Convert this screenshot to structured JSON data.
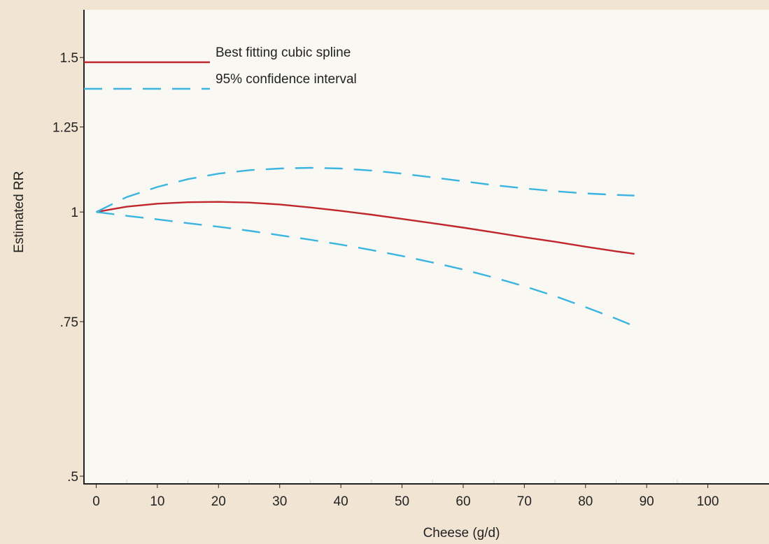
{
  "chart_data": {
    "type": "line",
    "title": "",
    "xlabel": "Cheese (g/d)",
    "ylabel": "Estimated RR",
    "xlim": [
      -2,
      110
    ],
    "ylim": [
      0.49,
      1.7
    ],
    "y_scale": "log",
    "x_ticks": [
      0,
      10,
      20,
      30,
      40,
      50,
      60,
      70,
      80,
      90,
      100
    ],
    "x_tick_labels": [
      "0",
      "10",
      "20",
      "30",
      "40",
      "50",
      "60",
      "70",
      "80",
      "90",
      "100"
    ],
    "y_ticks": [
      0.5,
      0.75,
      1,
      1.25,
      1.5
    ],
    "y_tick_labels": [
      ".5",
      ".75",
      "1",
      "1.25",
      "1.5"
    ],
    "legend_position": "top-left",
    "background_color": "#f1e4d3",
    "plot_background_color": "#faf8f3",
    "series": [
      {
        "name": "Best fitting cubic spline",
        "style": "solid",
        "color": "#c0272d",
        "x": [
          0,
          5,
          10,
          15,
          20,
          25,
          30,
          35,
          40,
          45,
          50,
          55,
          60,
          65,
          70,
          75,
          80,
          85,
          88
        ],
        "y": [
          1.0,
          1.014,
          1.022,
          1.026,
          1.027,
          1.025,
          1.02,
          1.012,
          1.003,
          0.993,
          0.982,
          0.971,
          0.96,
          0.948,
          0.936,
          0.925,
          0.913,
          0.902,
          0.896
        ]
      },
      {
        "name": "95% confidence interval",
        "style": "dashed",
        "color": "#3bb4e0",
        "x": [
          0,
          5,
          10,
          15,
          20,
          25,
          30,
          35,
          40,
          45,
          50,
          55,
          60,
          65,
          70,
          75,
          80,
          85,
          88
        ],
        "y": [
          1.0,
          1.04,
          1.068,
          1.09,
          1.106,
          1.116,
          1.121,
          1.123,
          1.121,
          1.115,
          1.106,
          1.095,
          1.084,
          1.073,
          1.064,
          1.056,
          1.05,
          1.046,
          1.044
        ]
      },
      {
        "name": "",
        "style": "dashed",
        "color": "#3bb4e0",
        "x": [
          0,
          5,
          10,
          15,
          20,
          25,
          30,
          35,
          40,
          45,
          50,
          55,
          60,
          65,
          70,
          75,
          80,
          85,
          88
        ],
        "y": [
          1.0,
          0.99,
          0.981,
          0.971,
          0.962,
          0.952,
          0.941,
          0.93,
          0.918,
          0.905,
          0.891,
          0.876,
          0.86,
          0.842,
          0.823,
          0.802,
          0.779,
          0.756,
          0.741
        ]
      }
    ]
  }
}
